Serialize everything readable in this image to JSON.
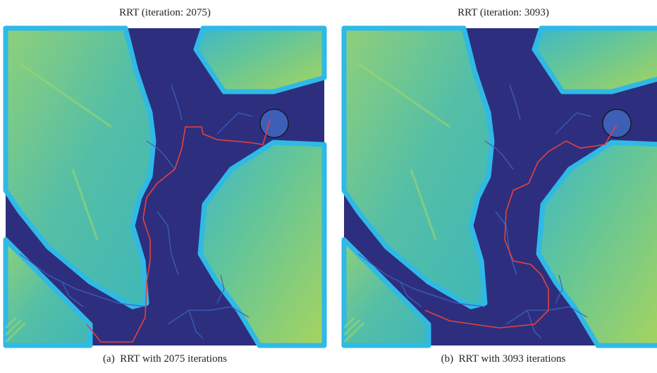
{
  "panels": [
    {
      "title": "RRT (iteration: 2075)",
      "caption": "(a)  RRT with 2075 iterations"
    },
    {
      "title": "RRT (iteration: 3093)",
      "caption": "(b)  RRT with 3093 iterations"
    }
  ]
}
